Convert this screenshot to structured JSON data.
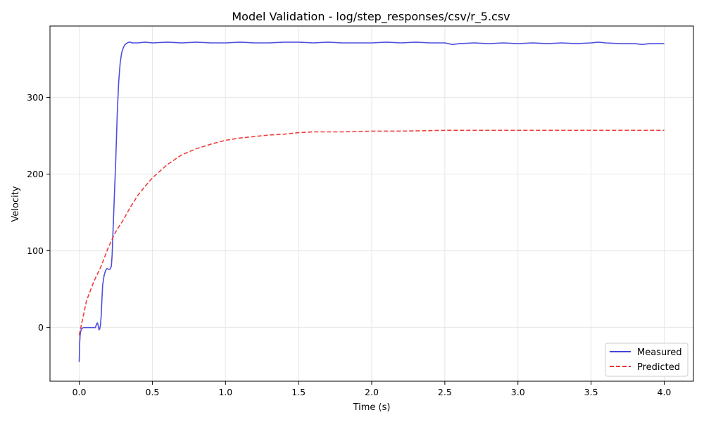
{
  "chart_data": {
    "type": "line",
    "title": "Model Validation - log/step_responses/csv/r_5.csv",
    "xlabel": "Time (s)",
    "ylabel": "Velocity",
    "xlim": [
      -0.2,
      4.2
    ],
    "ylim": [
      -70,
      393
    ],
    "xticks": [
      0.0,
      0.5,
      1.0,
      1.5,
      2.0,
      2.5,
      3.0,
      3.5,
      4.0
    ],
    "xtick_labels": [
      "0.0",
      "0.5",
      "1.0",
      "1.5",
      "2.0",
      "2.5",
      "3.0",
      "3.5",
      "4.0"
    ],
    "yticks": [
      0,
      100,
      200,
      300
    ],
    "ytick_labels": [
      "0",
      "100",
      "200",
      "300"
    ],
    "grid": true,
    "legend_position": "bottom-right",
    "series": [
      {
        "name": "Measured",
        "color": "#4444dd",
        "style": "solid",
        "x": [
          0.0,
          0.003,
          0.006,
          0.01,
          0.015,
          0.02,
          0.03,
          0.05,
          0.08,
          0.1,
          0.11,
          0.12,
          0.125,
          0.13,
          0.135,
          0.14,
          0.145,
          0.15,
          0.155,
          0.16,
          0.17,
          0.18,
          0.19,
          0.2,
          0.21,
          0.22,
          0.225,
          0.23,
          0.24,
          0.25,
          0.26,
          0.27,
          0.28,
          0.29,
          0.3,
          0.31,
          0.32,
          0.33,
          0.34,
          0.35,
          0.36,
          0.37,
          0.38,
          0.4,
          0.45,
          0.5,
          0.6,
          0.7,
          0.8,
          0.9,
          1.0,
          1.1,
          1.2,
          1.3,
          1.4,
          1.5,
          1.6,
          1.7,
          1.8,
          1.9,
          2.0,
          2.1,
          2.2,
          2.3,
          2.4,
          2.5,
          2.55,
          2.6,
          2.7,
          2.8,
          2.9,
          3.0,
          3.1,
          3.2,
          3.3,
          3.4,
          3.5,
          3.55,
          3.6,
          3.7,
          3.8,
          3.85,
          3.9,
          4.0
        ],
        "y": [
          -45,
          -20,
          -10,
          -5,
          -2,
          -1,
          0,
          0,
          0,
          0,
          0,
          5,
          6,
          2,
          -3,
          -2,
          3,
          15,
          35,
          55,
          68,
          74,
          77,
          76,
          76,
          80,
          95,
          120,
          170,
          220,
          280,
          320,
          345,
          358,
          364,
          368,
          370,
          371,
          372,
          372,
          371,
          371,
          371,
          371,
          372,
          371,
          372,
          371,
          372,
          371,
          371,
          372,
          371,
          371,
          372,
          372,
          371,
          372,
          371,
          371,
          371,
          372,
          371,
          372,
          371,
          371,
          369,
          370,
          371,
          370,
          371,
          370,
          371,
          370,
          371,
          370,
          371,
          372,
          371,
          370,
          370,
          369,
          370,
          370
        ]
      },
      {
        "name": "Predicted",
        "color": "#ee3333",
        "style": "dashed",
        "x": [
          0.0,
          0.05,
          0.1,
          0.15,
          0.2,
          0.25,
          0.3,
          0.35,
          0.4,
          0.45,
          0.5,
          0.6,
          0.7,
          0.8,
          0.9,
          1.0,
          1.1,
          1.2,
          1.3,
          1.4,
          1.5,
          1.6,
          1.8,
          2.0,
          2.2,
          2.5,
          3.0,
          3.5,
          4.0
        ],
        "y": [
          -10,
          35,
          60,
          80,
          105,
          125,
          140,
          157,
          172,
          184,
          195,
          212,
          225,
          233,
          239,
          244,
          247,
          249,
          251,
          252,
          254,
          255,
          255,
          256,
          256,
          257,
          257,
          257,
          257
        ]
      }
    ]
  }
}
